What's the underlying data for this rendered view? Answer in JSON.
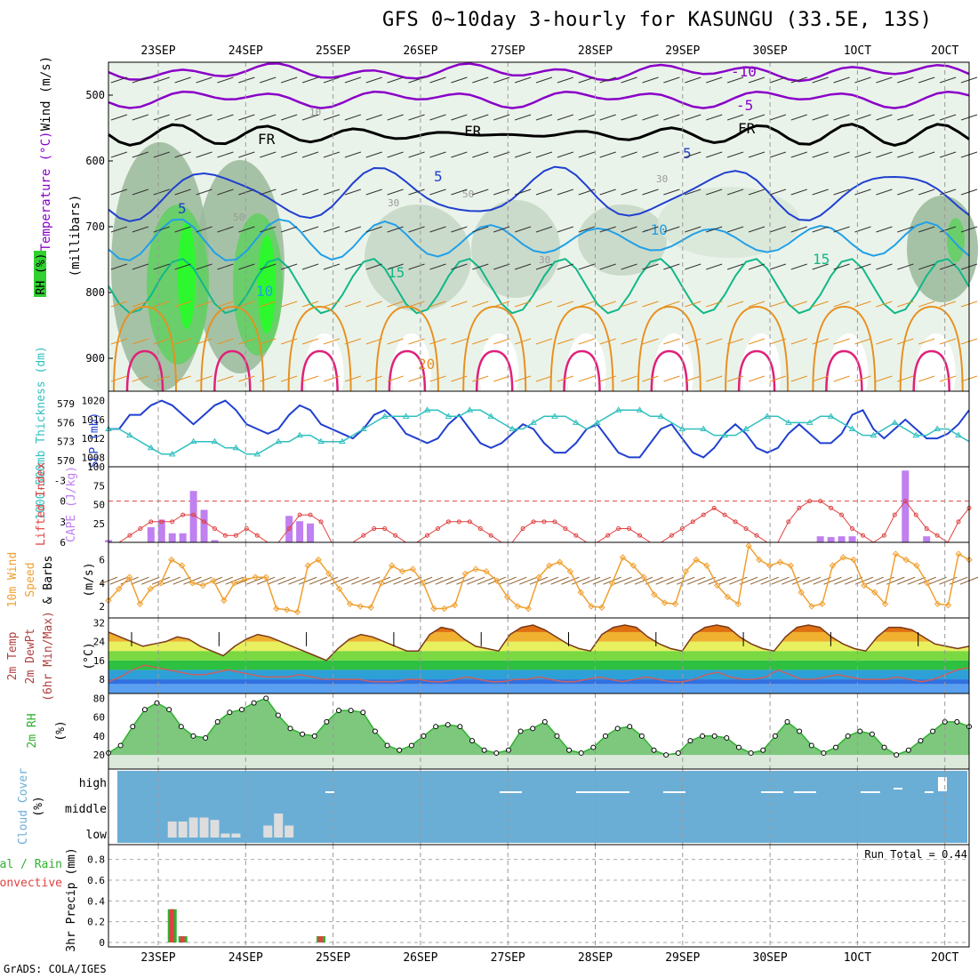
{
  "title": "GFS 0~10day 3-hourly for KASUNGU (33.5E, 13S)",
  "credit": "GrADS: COLA/IGES",
  "dates": [
    "23SEP",
    "24SEP",
    "25SEP",
    "26SEP",
    "27SEP",
    "28SEP",
    "29SEP",
    "30SEP",
    "1OCT",
    "2OCT"
  ],
  "colors": {
    "purple": "#8a00c8",
    "blue": "#1f3fd0",
    "cyan": "#20a0e8",
    "teal": "#10b888",
    "orange": "#e89020",
    "magenta": "#e0207a",
    "rh_green": "#30d030",
    "cloud_bg": "#6aaed6",
    "cape_bar": "#c080f0",
    "li_line": "#e04040",
    "slp_line": "#2040d0",
    "thk_line": "#30c0c0",
    "wind_line": "#f0a030",
    "rh2m": "#30b030"
  },
  "panels": {
    "upper": {
      "label_wind": "Wind (m/s)",
      "label_temp": "Temperature (°C)",
      "label_rh": "RH (%)",
      "label_mb": "(millibars)",
      "yticks": [
        "500",
        "600",
        "700",
        "800",
        "900"
      ],
      "contour_labels": [
        "-10",
        "-5",
        "FR",
        "FR",
        "FR",
        "5",
        "5",
        "5",
        "-10",
        "15",
        "15",
        "10",
        "20"
      ],
      "rh_labels": [
        "10",
        "30",
        "30",
        "50",
        "50",
        "30"
      ]
    },
    "slp": {
      "label_slp": "SLP (mb)",
      "label_thk": "1000-500mb Thickness (dm)",
      "yticks_slp": [
        "1020",
        "1016",
        "1012",
        "1008"
      ],
      "yticks_thk": [
        "579",
        "576",
        "573",
        "570"
      ]
    },
    "cape": {
      "label_li": "Lifted Index",
      "label_cape": "CAPE (J/kg)",
      "yticks_cape": [
        "100",
        "75",
        "50",
        "25"
      ],
      "yticks_li": [
        "-3",
        "0",
        "3",
        "6"
      ]
    },
    "wind10": {
      "label": "10m Wind",
      "label2": "Speed",
      "label3": "& Barbs",
      "units": "(m/s)",
      "yticks": [
        "6",
        "4",
        "2"
      ]
    },
    "temp2m": {
      "label": "2m Temp",
      "label2": "2m DewPt",
      "label3": "(6hr Min/Max)",
      "units": "(°C)",
      "yticks": [
        "32",
        "24",
        "16",
        "8"
      ]
    },
    "rh2m": {
      "label": "2m RH",
      "units": "(%)",
      "yticks": [
        "80",
        "60",
        "40",
        "20"
      ]
    },
    "cloud": {
      "label": "Cloud Cover",
      "units": "(%)",
      "levels": [
        "high",
        "middle",
        "low"
      ]
    },
    "precip": {
      "label": "3hr Precip (mm)",
      "legend1": "Total / Rain",
      "legend2": "Convective",
      "run_total": "Run Total = 0.44",
      "yticks": [
        "0.8",
        "0.6",
        "0.4",
        "0.2",
        "0"
      ]
    }
  },
  "chart_data": [
    {
      "type": "line",
      "name": "SLP",
      "units": "mb",
      "x_start": "2024-09-22 12Z",
      "step_hours": 3,
      "values": [
        1014,
        1014,
        1017,
        1017,
        1019,
        1020,
        1019,
        1017,
        1015,
        1017,
        1019,
        1020,
        1018,
        1015,
        1014,
        1013,
        1014,
        1017,
        1019,
        1018,
        1015,
        1014,
        1013,
        1012,
        1014,
        1017,
        1018,
        1016,
        1013,
        1012,
        1011,
        1012,
        1015,
        1017,
        1014,
        1011,
        1010,
        1011,
        1013,
        1015,
        1014,
        1011,
        1009,
        1009,
        1011,
        1014,
        1015,
        1012,
        1009,
        1008,
        1008,
        1011,
        1014,
        1015,
        1012,
        1009,
        1008,
        1010,
        1013,
        1015,
        1013,
        1010,
        1009,
        1010,
        1013,
        1015,
        1013,
        1011,
        1011,
        1013,
        1017,
        1018,
        1014,
        1012,
        1014,
        1016,
        1014,
        1012,
        1012,
        1013,
        1015,
        1018
      ]
    },
    {
      "type": "line",
      "name": "Thickness",
      "units": "dm",
      "values": [
        575,
        575,
        574,
        573,
        572,
        571,
        571,
        572,
        573,
        573,
        573,
        572,
        572,
        571,
        571,
        572,
        573,
        573,
        574,
        574,
        573,
        573,
        573,
        574,
        575,
        576,
        577,
        577,
        577,
        577,
        578,
        578,
        577,
        577,
        578,
        578,
        577,
        576,
        575,
        575,
        576,
        577,
        577,
        577,
        576,
        575,
        576,
        577,
        578,
        578,
        578,
        577,
        577,
        576,
        575,
        575,
        575,
        574,
        574,
        574,
        575,
        576,
        577,
        577,
        576,
        576,
        576,
        577,
        577,
        576,
        575,
        574,
        574,
        575,
        576,
        575,
        574,
        574,
        575,
        575,
        574,
        573
      ]
    },
    {
      "type": "bar",
      "name": "CAPE",
      "units": "J/kg",
      "x_idx": [
        0,
        4,
        5,
        6,
        7,
        8,
        9,
        10,
        17,
        18,
        19,
        67,
        68,
        69,
        70,
        75,
        77
      ],
      "values": [
        3,
        20,
        30,
        12,
        12,
        68,
        43,
        3,
        35,
        28,
        25,
        8,
        7,
        8,
        8,
        95,
        8
      ]
    },
    {
      "type": "line",
      "name": "Lifted Index",
      "units": "C",
      "values": [
        6,
        6,
        5,
        4,
        3,
        3,
        3,
        2,
        2,
        3,
        4,
        5,
        5,
        4,
        5,
        6,
        6,
        4,
        2,
        2,
        3,
        6,
        6,
        6,
        5,
        4,
        4,
        5,
        6,
        6,
        5,
        4,
        3,
        3,
        3,
        4,
        5,
        6,
        6,
        4,
        3,
        3,
        3,
        4,
        5,
        6,
        6,
        5,
        4,
        4,
        5,
        6,
        6,
        5,
        4,
        3,
        2,
        1,
        2,
        3,
        4,
        5,
        6,
        6,
        3,
        1,
        0,
        0,
        1,
        2,
        4,
        5,
        6,
        5,
        2,
        0,
        2,
        4,
        5,
        6,
        3,
        1
      ]
    },
    {
      "type": "line",
      "name": "10m Wind Speed",
      "units": "m/s",
      "values": [
        2.5,
        3.5,
        4.5,
        2.2,
        3.5,
        4,
        6,
        5.5,
        4,
        3.8,
        4.2,
        2.5,
        4,
        4.3,
        4.5,
        4.5,
        1.8,
        1.7,
        1.5,
        5.5,
        6,
        4.8,
        3.5,
        2.2,
        2,
        1.9,
        4,
        5.5,
        5,
        5.2,
        4,
        1.8,
        1.8,
        2.1,
        4.8,
        5.2,
        5,
        4.2,
        2.8,
        2,
        1.8,
        4.5,
        5.5,
        5.8,
        5,
        3.2,
        2,
        1.9,
        4,
        6.2,
        5.5,
        4.5,
        3,
        2.3,
        2.2,
        5,
        6,
        5.5,
        3.8,
        2.8,
        2.2,
        7.2,
        6,
        5.5,
        5.8,
        5.5,
        3.2,
        2,
        2.2,
        5.5,
        6.2,
        6,
        3.8,
        3.2,
        2.2,
        6.5,
        6,
        5.5,
        4,
        2.2,
        2.1,
        6.5,
        6
      ]
    },
    {
      "type": "line",
      "name": "2m Temp",
      "units": "C",
      "values": [
        28,
        26,
        24,
        22,
        23,
        24,
        26,
        25,
        22,
        20,
        18,
        22,
        25,
        27,
        26,
        24,
        22,
        20,
        18,
        16,
        21,
        25,
        27,
        26,
        24,
        22,
        20,
        20,
        27,
        30,
        29,
        25,
        22,
        21,
        20,
        27,
        30,
        31,
        29,
        26,
        23,
        21,
        20,
        27,
        30,
        31,
        30,
        26,
        23,
        21,
        20,
        27,
        30,
        31,
        30,
        26,
        23,
        21,
        20,
        26,
        30,
        31,
        30,
        26,
        23,
        21,
        20,
        26,
        30,
        30,
        29,
        26,
        23,
        22,
        21,
        22
      ]
    },
    {
      "type": "line",
      "name": "2m DewPt",
      "units": "C",
      "values": [
        7,
        9,
        12,
        14,
        13,
        12,
        11,
        10,
        10,
        11,
        12,
        11,
        10,
        9,
        9,
        9,
        10,
        9,
        8,
        8,
        8,
        8,
        7,
        7,
        7,
        8,
        8,
        7,
        7,
        8,
        9,
        8,
        7,
        7,
        8,
        8,
        9,
        8,
        7,
        7,
        8,
        9,
        8,
        7,
        8,
        9,
        8,
        7,
        7,
        8,
        10,
        11,
        9,
        8,
        8,
        9,
        12,
        10,
        8,
        8,
        9,
        10,
        9,
        8,
        8,
        8,
        9,
        8,
        7,
        8,
        10,
        12,
        13
      ]
    },
    {
      "type": "line",
      "name": "2m RH",
      "units": "%",
      "values": [
        22,
        30,
        50,
        68,
        75,
        68,
        50,
        40,
        38,
        55,
        65,
        68,
        75,
        80,
        62,
        48,
        42,
        40,
        55,
        67,
        67,
        65,
        45,
        30,
        25,
        30,
        40,
        50,
        52,
        50,
        35,
        25,
        22,
        25,
        45,
        48,
        55,
        40,
        25,
        22,
        28,
        40,
        48,
        50,
        40,
        25,
        20,
        22,
        35,
        40,
        40,
        38,
        28,
        22,
        25,
        40,
        55,
        45,
        30,
        22,
        28,
        40,
        45,
        42,
        28,
        20,
        25,
        35,
        45,
        55,
        55,
        50
      ]
    },
    {
      "type": "bar",
      "name": "Cloud low",
      "units": "%",
      "x_idx": [
        6,
        7,
        8,
        9,
        10,
        11,
        12,
        15,
        16,
        17
      ],
      "values": [
        20,
        20,
        25,
        25,
        22,
        5,
        5,
        15,
        30,
        15
      ]
    },
    {
      "type": "bar",
      "name": "3hr Precip",
      "units": "mm",
      "x_idx": [
        6,
        7,
        20
      ],
      "values": [
        0.32,
        0.06,
        0.06
      ]
    }
  ]
}
